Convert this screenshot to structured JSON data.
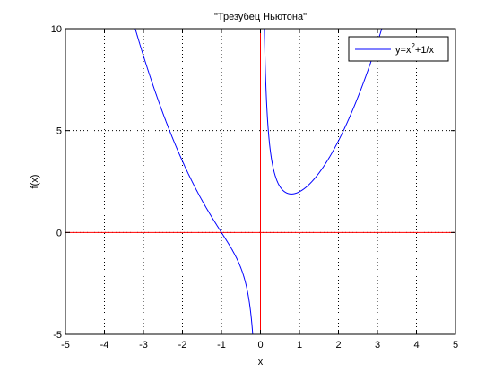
{
  "chart_data": {
    "type": "line",
    "title": "\"Трезубец Ньютона\"",
    "xlabel": "x",
    "ylabel": "f(x)",
    "xlim": [
      -5,
      5
    ],
    "ylim": [
      -5,
      10
    ],
    "xticks": [
      -5,
      -4,
      -3,
      -2,
      -1,
      0,
      1,
      2,
      3,
      4,
      5
    ],
    "yticks": [
      -5,
      0,
      5,
      10
    ],
    "xtick_labels": [
      "-5",
      "-4",
      "-3",
      "-2",
      "-1",
      "0",
      "1",
      "2",
      "3",
      "4",
      "5"
    ],
    "ytick_labels": [
      "-5",
      "0",
      "5",
      "10"
    ],
    "grid": true,
    "grid_style": "dotted",
    "legend_position": "top-right",
    "legend": {
      "label_prefix": "y=x",
      "label_sup": "2",
      "label_suffix": "+1/x"
    },
    "series": [
      {
        "name": "y=x^2+1/x",
        "formula": "x^2 + 1/x",
        "color": "#0000ff",
        "x_range": [
          -5,
          5
        ]
      }
    ],
    "reference_lines": [
      {
        "axis": "y",
        "value": 0,
        "color": "#ff0000"
      },
      {
        "axis": "x",
        "value": 0,
        "color": "#ff0000"
      }
    ],
    "colors": {
      "line": "#0000ff",
      "axes_lines": "#ff0000",
      "frame": "#000000",
      "background": "#ffffff"
    }
  }
}
